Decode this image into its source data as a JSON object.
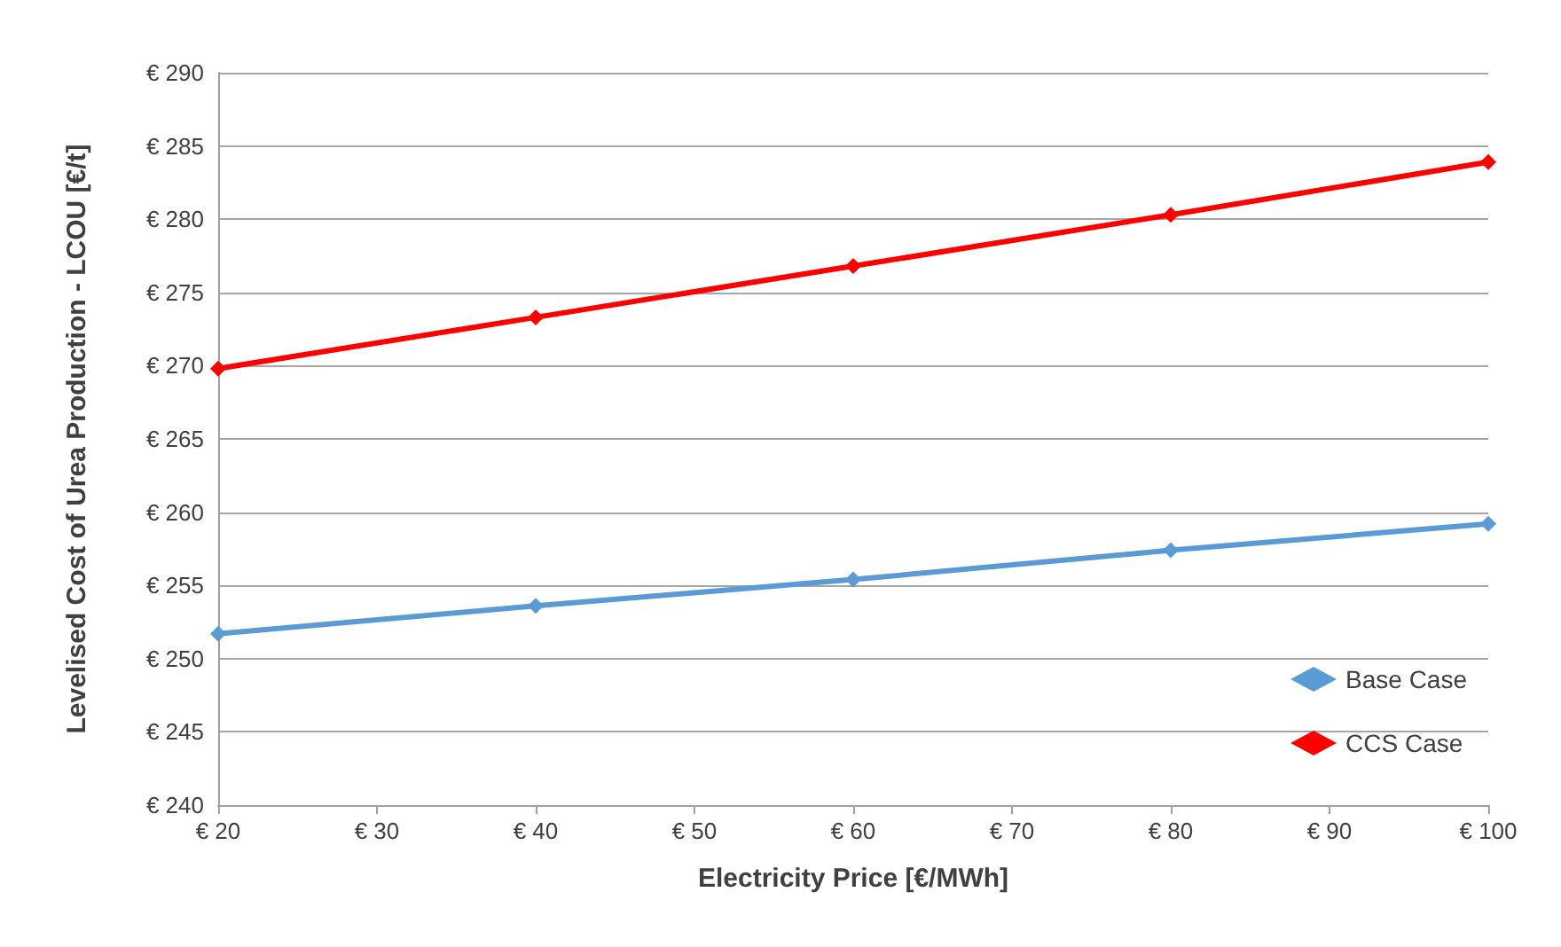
{
  "chart_data": {
    "type": "line",
    "xlabel": "Electricity Price [€/MWh]",
    "ylabel": "Levelised Cost of Urea Production - LCOU [€/t]",
    "x": [
      20,
      40,
      60,
      80,
      100
    ],
    "series": [
      {
        "name": "Base Case",
        "color": "#5b9bd5",
        "values": [
          251.7,
          253.6,
          255.4,
          257.4,
          259.2
        ]
      },
      {
        "name": "CCS Case",
        "color": "#ff0000",
        "values": [
          269.8,
          273.3,
          276.8,
          280.3,
          283.9
        ]
      }
    ],
    "xlim": [
      20,
      100
    ],
    "xticks": [
      {
        "value": 20,
        "label": "€ 20"
      },
      {
        "value": 30,
        "label": "€ 30"
      },
      {
        "value": 40,
        "label": "€ 40"
      },
      {
        "value": 50,
        "label": "€ 50"
      },
      {
        "value": 60,
        "label": "€ 60"
      },
      {
        "value": 70,
        "label": "€ 70"
      },
      {
        "value": 80,
        "label": "€ 80"
      },
      {
        "value": 90,
        "label": "€ 90"
      },
      {
        "value": 100,
        "label": "€ 100"
      }
    ],
    "ylim": [
      240,
      290
    ],
    "yticks": [
      {
        "value": 240,
        "label": "€ 240"
      },
      {
        "value": 245,
        "label": "€ 245"
      },
      {
        "value": 250,
        "label": "€ 250"
      },
      {
        "value": 255,
        "label": "€ 255"
      },
      {
        "value": 260,
        "label": "€ 260"
      },
      {
        "value": 265,
        "label": "€ 265"
      },
      {
        "value": 270,
        "label": "€ 270"
      },
      {
        "value": 275,
        "label": "€ 275"
      },
      {
        "value": 280,
        "label": "€ 280"
      },
      {
        "value": 285,
        "label": "€ 285"
      },
      {
        "value": 290,
        "label": "€ 290"
      }
    ],
    "grid": "y",
    "legend": "bottom right",
    "marker": "diamond",
    "line_style": "solid"
  }
}
